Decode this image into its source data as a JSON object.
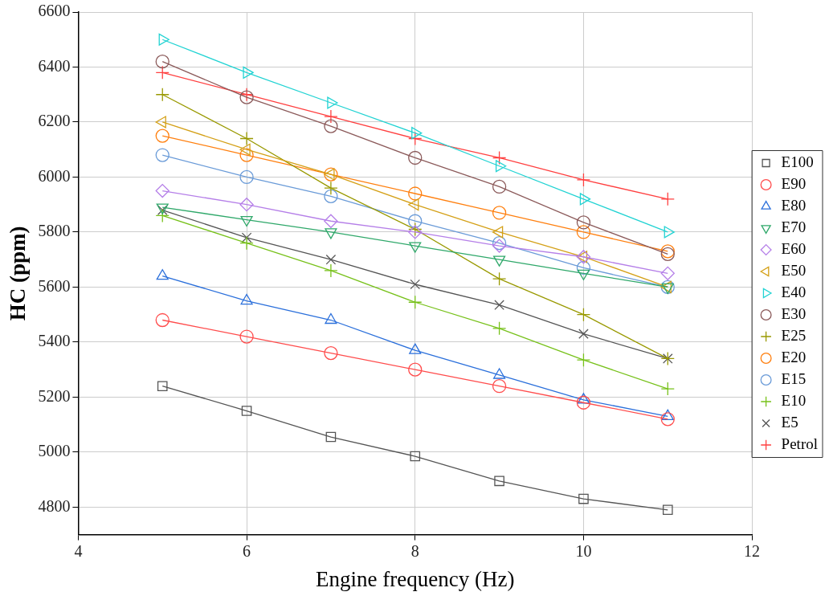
{
  "chart_data": {
    "type": "line",
    "xlabel": "Engine frequency (Hz)",
    "ylabel": "HC (ppm)",
    "x": [
      5,
      6,
      7,
      8,
      9,
      10,
      11
    ],
    "xlim": [
      4,
      12
    ],
    "xticks": [
      4,
      6,
      8,
      10,
      12
    ],
    "ylim": [
      4700,
      6600
    ],
    "yticks": [
      4800,
      5000,
      5200,
      5400,
      5600,
      5800,
      6000,
      6200,
      6400,
      6600
    ],
    "grid": true,
    "legend": "right",
    "line_style": "solid",
    "series": [
      {
        "name": "E100",
        "color": "#555555",
        "marker": "square",
        "values": [
          5240,
          5150,
          5055,
          4985,
          4895,
          4830,
          4790
        ]
      },
      {
        "name": "E90",
        "color": "#ff4c4c",
        "marker": "circle",
        "values": [
          5480,
          5420,
          5360,
          5300,
          5240,
          5180,
          5120
        ]
      },
      {
        "name": "E80",
        "color": "#2a6fdb",
        "marker": "triangle",
        "values": [
          5640,
          5550,
          5480,
          5370,
          5280,
          5190,
          5130
        ]
      },
      {
        "name": "E70",
        "color": "#2fa86a",
        "marker": "triangle-down",
        "values": [
          5890,
          5845,
          5800,
          5750,
          5700,
          5650,
          5600
        ]
      },
      {
        "name": "E60",
        "color": "#b57fe8",
        "marker": "diamond",
        "values": [
          5950,
          5900,
          5840,
          5800,
          5750,
          5710,
          5650
        ]
      },
      {
        "name": "E50",
        "color": "#d4a017",
        "marker": "triangle-left",
        "values": [
          6200,
          6100,
          6010,
          5900,
          5800,
          5710,
          5600
        ]
      },
      {
        "name": "E40",
        "color": "#22d3d3",
        "marker": "triangle-right",
        "values": [
          6500,
          6380,
          6270,
          6160,
          6040,
          5920,
          5800
        ]
      },
      {
        "name": "E30",
        "color": "#8b5a5a",
        "marker": "circle",
        "values": [
          6420,
          6290,
          6185,
          6070,
          5965,
          5835,
          5720
        ]
      },
      {
        "name": "E25",
        "color": "#999900",
        "marker": "cross",
        "values": [
          6300,
          6140,
          5960,
          5810,
          5630,
          5500,
          5340
        ]
      },
      {
        "name": "E20",
        "color": "#ff7f0e",
        "marker": "circle",
        "values": [
          6150,
          6080,
          6010,
          5940,
          5870,
          5800,
          5730
        ]
      },
      {
        "name": "E15",
        "color": "#6a9bd8",
        "marker": "circle",
        "values": [
          6080,
          6000,
          5930,
          5840,
          5760,
          5670,
          5600
        ]
      },
      {
        "name": "E10",
        "color": "#77c11a",
        "marker": "cross",
        "values": [
          5860,
          5760,
          5660,
          5545,
          5450,
          5335,
          5230
        ]
      },
      {
        "name": "E5",
        "color": "#555555",
        "marker": "x",
        "values": [
          5880,
          5780,
          5700,
          5610,
          5535,
          5430,
          5340
        ]
      },
      {
        "name": "Petrol",
        "color": "#ff4040",
        "marker": "cross",
        "values": [
          6380,
          6300,
          6220,
          6140,
          6070,
          5990,
          5920
        ]
      }
    ]
  }
}
